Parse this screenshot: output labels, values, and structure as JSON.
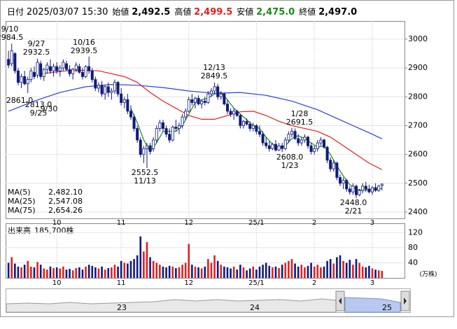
{
  "chart_data": {
    "type": "candlestick",
    "info": {
      "date_label": "日付",
      "date": "2025/03/07 15:30",
      "open_label": "始値",
      "open": "2,492.5",
      "high_label": "高値",
      "high": "2,499.5",
      "low_label": "安値",
      "low": "2,475.0",
      "close_label": "終値",
      "close": "2,497.0"
    },
    "xlim": [
      -0.9,
      123
    ],
    "ylim": [
      2378,
      3063
    ],
    "yticks": [
      2400,
      2500,
      2600,
      2700,
      2800,
      2900,
      3000
    ],
    "xticks": [
      {
        "value": 15,
        "label": "10"
      },
      {
        "value": 35,
        "label": "11"
      },
      {
        "value": 56,
        "label": "12"
      },
      {
        "value": 77,
        "label": "25/1"
      },
      {
        "value": 95,
        "label": "2"
      },
      {
        "value": 113,
        "label": "3"
      }
    ],
    "up_color": "#ffffff",
    "down_color": "#101a7a",
    "candles": [
      [
        2930,
        2960,
        2900,
        2910
      ],
      [
        2915,
        2984.5,
        2905,
        2960
      ],
      [
        2950,
        2955,
        2880,
        2890
      ],
      [
        2890,
        2900,
        2840,
        2850
      ],
      [
        2850,
        2880,
        2830,
        2870
      ],
      [
        2870,
        2890,
        2840,
        2845
      ],
      [
        2845,
        2870,
        2813,
        2860
      ],
      [
        2860,
        2900,
        2850,
        2890
      ],
      [
        2885,
        2905,
        2861,
        2870
      ],
      [
        2875,
        2932.5,
        2865,
        2920
      ],
      [
        2915,
        2925,
        2860,
        2870
      ],
      [
        2870,
        2900,
        2855,
        2895
      ],
      [
        2895,
        2920,
        2880,
        2910
      ],
      [
        2905,
        2930,
        2880,
        2890
      ],
      [
        2890,
        2915,
        2870,
        2905
      ],
      [
        2905,
        2920,
        2880,
        2890
      ],
      [
        2890,
        2910,
        2870,
        2900
      ],
      [
        2900,
        2930,
        2890,
        2920
      ],
      [
        2915,
        2925,
        2890,
        2895
      ],
      [
        2895,
        2910,
        2870,
        2880
      ],
      [
        2880,
        2900,
        2860,
        2895
      ],
      [
        2895,
        2920,
        2885,
        2910
      ],
      [
        2905,
        2915,
        2880,
        2885
      ],
      [
        2885,
        2900,
        2860,
        2870
      ],
      [
        2870,
        2910,
        2865,
        2905
      ],
      [
        2905,
        2939.5,
        2880,
        2890
      ],
      [
        2890,
        2900,
        2850,
        2860
      ],
      [
        2860,
        2870,
        2820,
        2830
      ],
      [
        2830,
        2850,
        2815,
        2840
      ],
      [
        2840,
        2855,
        2800,
        2810
      ],
      [
        2810,
        2840,
        2790,
        2835
      ],
      [
        2835,
        2850,
        2800,
        2815
      ],
      [
        2815,
        2830,
        2790,
        2820
      ],
      [
        2820,
        2860,
        2810,
        2850
      ],
      [
        2850,
        2855,
        2800,
        2810
      ],
      [
        2810,
        2830,
        2770,
        2780
      ],
      [
        2780,
        2800,
        2760,
        2790
      ],
      [
        2790,
        2810,
        2740,
        2750
      ],
      [
        2750,
        2770,
        2720,
        2730
      ],
      [
        2730,
        2740,
        2680,
        2690
      ],
      [
        2690,
        2700,
        2640,
        2650
      ],
      [
        2650,
        2660,
        2590,
        2600
      ],
      [
        2600,
        2630,
        2570,
        2620
      ],
      [
        2620,
        2640,
        2552.5,
        2630
      ],
      [
        2630,
        2640,
        2600,
        2610
      ],
      [
        2620,
        2660,
        2610,
        2650
      ],
      [
        2650,
        2700,
        2640,
        2690
      ],
      [
        2690,
        2720,
        2680,
        2710
      ],
      [
        2710,
        2720,
        2680,
        2690
      ],
      [
        2690,
        2700,
        2660,
        2670
      ],
      [
        2670,
        2690,
        2640,
        2650
      ],
      [
        2650,
        2700,
        2645,
        2695
      ],
      [
        2695,
        2720,
        2680,
        2690
      ],
      [
        2690,
        2710,
        2670,
        2700
      ],
      [
        2700,
        2740,
        2690,
        2730
      ],
      [
        2730,
        2760,
        2720,
        2750
      ],
      [
        2750,
        2800,
        2745,
        2790
      ],
      [
        2790,
        2810,
        2770,
        2780
      ],
      [
        2780,
        2800,
        2760,
        2795
      ],
      [
        2795,
        2805,
        2770,
        2775
      ],
      [
        2775,
        2790,
        2760,
        2785
      ],
      [
        2785,
        2800,
        2770,
        2780
      ],
      [
        2780,
        2820,
        2775,
        2810
      ],
      [
        2810,
        2830,
        2800,
        2820
      ],
      [
        2820,
        2849.5,
        2810,
        2835
      ],
      [
        2835,
        2845,
        2790,
        2800
      ],
      [
        2800,
        2820,
        2790,
        2810
      ],
      [
        2810,
        2815,
        2770,
        2775
      ],
      [
        2775,
        2790,
        2740,
        2750
      ],
      [
        2750,
        2760,
        2730,
        2740
      ],
      [
        2740,
        2760,
        2720,
        2750
      ],
      [
        2750,
        2755,
        2730,
        2735
      ],
      [
        2735,
        2740,
        2690,
        2700
      ],
      [
        2700,
        2720,
        2690,
        2715
      ],
      [
        2715,
        2725,
        2700,
        2705
      ],
      [
        2705,
        2715,
        2680,
        2690
      ],
      [
        2690,
        2710,
        2680,
        2700
      ],
      [
        2700,
        2705,
        2670,
        2680
      ],
      [
        2680,
        2700,
        2660,
        2670
      ],
      [
        2670,
        2680,
        2630,
        2640
      ],
      [
        2640,
        2660,
        2620,
        2630
      ],
      [
        2630,
        2645,
        2610,
        2620
      ],
      [
        2620,
        2640,
        2615,
        2635
      ],
      [
        2635,
        2650,
        2610,
        2615
      ],
      [
        2615,
        2640,
        2612,
        2630
      ],
      [
        2630,
        2640,
        2608,
        2620
      ],
      [
        2620,
        2660,
        2615,
        2650
      ],
      [
        2650,
        2680,
        2640,
        2670
      ],
      [
        2670,
        2691.5,
        2660,
        2680
      ],
      [
        2680,
        2690,
        2650,
        2655
      ],
      [
        2655,
        2670,
        2630,
        2640
      ],
      [
        2640,
        2660,
        2630,
        2650
      ],
      [
        2650,
        2670,
        2640,
        2660
      ],
      [
        2660,
        2665,
        2620,
        2630
      ],
      [
        2630,
        2640,
        2600,
        2610
      ],
      [
        2610,
        2630,
        2600,
        2620
      ],
      [
        2620,
        2650,
        2610,
        2640
      ],
      [
        2640,
        2660,
        2630,
        2650
      ],
      [
        2650,
        2655,
        2620,
        2625
      ],
      [
        2625,
        2630,
        2570,
        2580
      ],
      [
        2580,
        2590,
        2540,
        2550
      ],
      [
        2550,
        2580,
        2540,
        2570
      ],
      [
        2570,
        2575,
        2510,
        2520
      ],
      [
        2520,
        2530,
        2490,
        2500
      ],
      [
        2500,
        2520,
        2480,
        2510
      ],
      [
        2510,
        2515,
        2470,
        2480
      ],
      [
        2480,
        2490,
        2460,
        2470
      ],
      [
        2470,
        2500,
        2460,
        2490
      ],
      [
        2490,
        2495,
        2448,
        2460
      ],
      [
        2460,
        2480,
        2455,
        2475
      ],
      [
        2475,
        2500,
        2465,
        2490
      ],
      [
        2490,
        2505,
        2470,
        2480
      ],
      [
        2480,
        2495,
        2465,
        2470
      ],
      [
        2470,
        2490,
        2460,
        2485
      ],
      [
        2485,
        2500,
        2470,
        2475
      ],
      [
        2475,
        2495,
        2470,
        2490
      ],
      [
        2492.5,
        2499.5,
        2475,
        2497
      ]
    ],
    "series": [
      {
        "name": "MA(5)",
        "color": "#1a8a1a",
        "latest": "2,482.10",
        "x": [
          38,
          40,
          42,
          44,
          46,
          48,
          50,
          52,
          54,
          56,
          58,
          60,
          62,
          64,
          66,
          68,
          70,
          72,
          74,
          76,
          78,
          80,
          82,
          84,
          86,
          88,
          90,
          92,
          94,
          96,
          98,
          100,
          102,
          104,
          106,
          108,
          110,
          112,
          114,
          116
        ],
        "values": [
          2760,
          2710,
          2650,
          2610,
          2640,
          2680,
          2680,
          2680,
          2700,
          2740,
          2780,
          2790,
          2795,
          2810,
          2815,
          2790,
          2760,
          2740,
          2720,
          2700,
          2690,
          2660,
          2635,
          2625,
          2630,
          2655,
          2665,
          2655,
          2640,
          2625,
          2630,
          2600,
          2560,
          2525,
          2495,
          2480,
          2475,
          2478,
          2478,
          2482.1
        ]
      },
      {
        "name": "MA(25)",
        "color": "#e02020",
        "latest": "2,547.08",
        "x": [
          10,
          14,
          18,
          22,
          28,
          32,
          36,
          40,
          44,
          48,
          52,
          56,
          60,
          64,
          68,
          72,
          76,
          80,
          84,
          88,
          92,
          96,
          100,
          104,
          108,
          112,
          116
        ],
        "values": [
          2880,
          2885,
          2890,
          2892,
          2890,
          2880,
          2870,
          2850,
          2815,
          2785,
          2760,
          2735,
          2722,
          2722,
          2735,
          2748,
          2750,
          2735,
          2715,
          2700,
          2690,
          2680,
          2660,
          2630,
          2600,
          2570,
          2547.08
        ]
      },
      {
        "name": "MA(75)",
        "color": "#2a3fe0",
        "latest": "2,654.26",
        "x": [
          0,
          8,
          16,
          24,
          32,
          40,
          48,
          56,
          64,
          72,
          80,
          88,
          96,
          104,
          112,
          116
        ],
        "values": [
          2750,
          2785,
          2815,
          2835,
          2843,
          2840,
          2832,
          2820,
          2812,
          2815,
          2805,
          2785,
          2755,
          2715,
          2675,
          2654.26
        ]
      }
    ],
    "annotations": [
      {
        "date": "9/10",
        "price": "2984.5"
      },
      {
        "date": "9/27",
        "price": "2932.5"
      },
      {
        "date": "10/16",
        "price": "2939.5"
      },
      {
        "date": "9/30",
        "price": "2861.0"
      },
      {
        "date": "9/25",
        "price": "2813.0"
      },
      {
        "date": "12/13",
        "price": "2849.5"
      },
      {
        "date": "1/28",
        "price": "2691.5"
      },
      {
        "date": "11/13",
        "price": "2552.5"
      },
      {
        "date": "1/23",
        "price": "2608.0"
      },
      {
        "date": "2/21",
        "price": "2448.0"
      }
    ],
    "volume": {
      "label": "出来高",
      "last": "185,700株",
      "unit": "(万株)",
      "up_color": "#e02020",
      "down_color": "#101a7a",
      "ylim": [
        0,
        143
      ],
      "yticks": [
        40,
        80,
        120
      ],
      "values": [
        40,
        55,
        38,
        30,
        28,
        35,
        45,
        30,
        28,
        42,
        35,
        25,
        22,
        30,
        26,
        28,
        25,
        30,
        22,
        24,
        20,
        26,
        28,
        22,
        30,
        35,
        32,
        28,
        25,
        30,
        22,
        26,
        28,
        35,
        30,
        45,
        40,
        38,
        45,
        50,
        60,
        110,
        70,
        95,
        55,
        45,
        40,
        35,
        30,
        28,
        32,
        30,
        26,
        28,
        35,
        40,
        90,
        35,
        30,
        28,
        25,
        30,
        50,
        40,
        60,
        45,
        35,
        30,
        28,
        25,
        30,
        22,
        35,
        28,
        20,
        25,
        30,
        22,
        30,
        35,
        40,
        32,
        28,
        30,
        26,
        35,
        40,
        45,
        50,
        38,
        30,
        35,
        28,
        32,
        40,
        30,
        35,
        28,
        30,
        45,
        50,
        38,
        55,
        60,
        45,
        40,
        48,
        35,
        50,
        40,
        30,
        28,
        32,
        25,
        22,
        20,
        18.57
      ]
    },
    "navigator": {
      "labels": [
        "23",
        "24",
        "25"
      ]
    }
  }
}
